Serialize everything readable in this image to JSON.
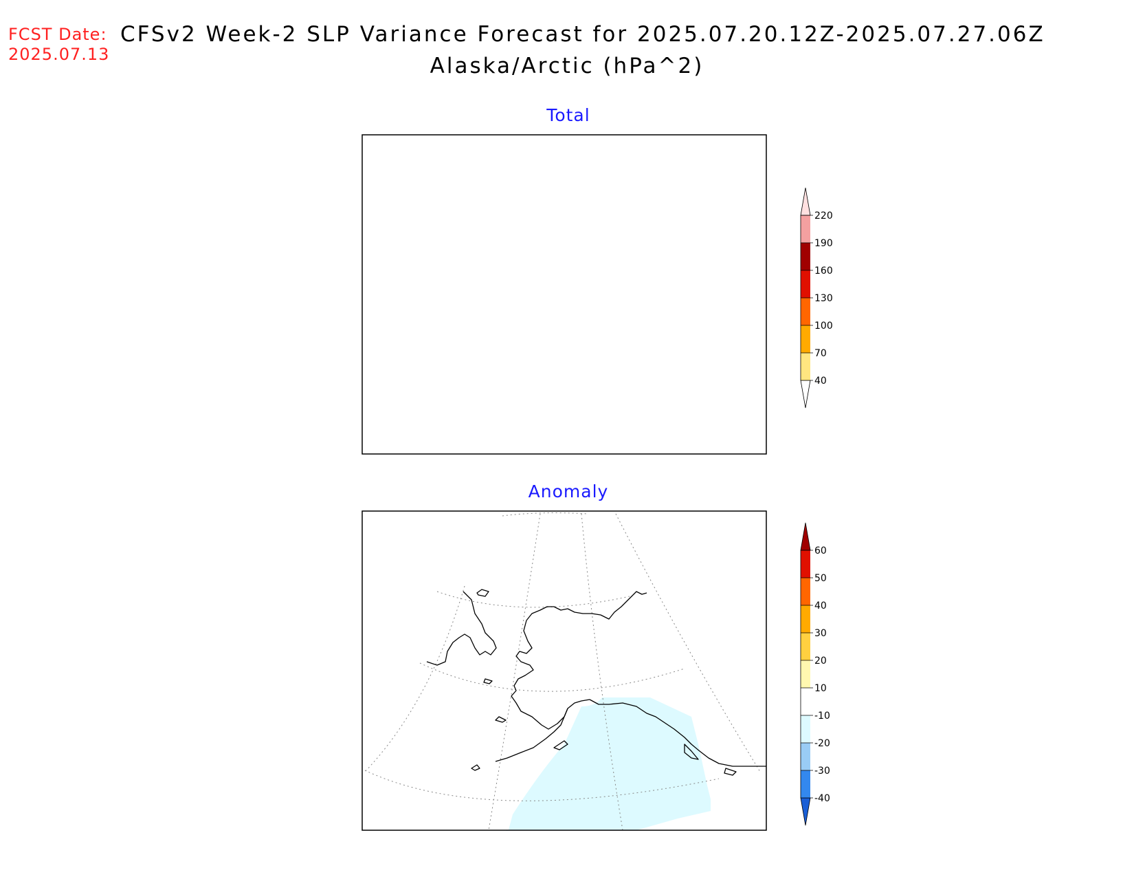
{
  "header": {
    "fcst_label": "FCST Date:",
    "fcst_date": "2025.07.13",
    "title_line1": "CFSv2 Week-2 SLP Variance Forecast for 2025.07.20.12Z-2025.07.27.06Z",
    "title_line2": "Alaska/Arctic (hPa^2)"
  },
  "panels": {
    "total": {
      "title": "Total"
    },
    "anomaly": {
      "title": "Anomaly"
    }
  },
  "colorbars": {
    "total": {
      "labels": [
        "40",
        "70",
        "100",
        "130",
        "160",
        "190",
        "220"
      ],
      "colors": [
        "#ffffff",
        "#ffe680",
        "#ffaa00",
        "#ff6600",
        "#e01000",
        "#a00000",
        "#f4a0a0",
        "#ffe0e0"
      ]
    },
    "anomaly": {
      "labels": [
        "-40",
        "-30",
        "-20",
        "-10",
        "10",
        "20",
        "30",
        "40",
        "50",
        "60"
      ],
      "colors": [
        "#1a5fd6",
        "#3388ee",
        "#99ccf5",
        "#ddfaff",
        "#ffffff",
        "#fff8b0",
        "#ffd040",
        "#ffaa00",
        "#ff6600",
        "#e01000",
        "#a00000"
      ]
    }
  },
  "map_data": {
    "region": "Alaska/Arctic",
    "anomaly_shading": {
      "level": "-10 to -20",
      "color": "#ddfaff",
      "area": "Gulf of Alaska"
    }
  }
}
